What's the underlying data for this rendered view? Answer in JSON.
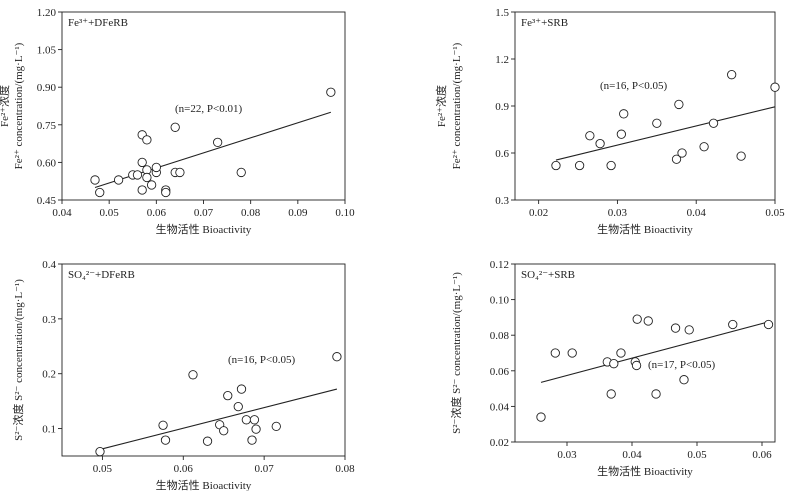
{
  "chart_data": [
    {
      "type": "scatter",
      "title": "Fe³⁺+DFeRB",
      "xlabel": "生物活性 Bioactivity",
      "ylabel_line1": "Fe²⁺浓度",
      "ylabel_line2": "Fe²⁺ concentration/(mg·L⁻¹)",
      "xlim": [
        0.04,
        0.1
      ],
      "ylim": [
        0.45,
        1.2
      ],
      "xticks": [
        0.04,
        0.05,
        0.06,
        0.07,
        0.08,
        0.09,
        0.1
      ],
      "xtick_labels": [
        "0.04",
        "0.05",
        "0.06",
        "0.07",
        "0.08",
        "0.09",
        "0.10"
      ],
      "yticks": [
        0.45,
        0.6,
        0.75,
        0.9,
        1.05,
        1.2
      ],
      "ytick_labels": [
        "0.45",
        "0.60",
        "0.75",
        "0.90",
        "1.05",
        "1.20"
      ],
      "annotation": "(n=22, P<0.01)",
      "points": [
        {
          "x": 0.047,
          "y": 0.53
        },
        {
          "x": 0.048,
          "y": 0.48
        },
        {
          "x": 0.052,
          "y": 0.53
        },
        {
          "x": 0.055,
          "y": 0.55
        },
        {
          "x": 0.056,
          "y": 0.55
        },
        {
          "x": 0.057,
          "y": 0.6
        },
        {
          "x": 0.057,
          "y": 0.49
        },
        {
          "x": 0.057,
          "y": 0.71
        },
        {
          "x": 0.058,
          "y": 0.69
        },
        {
          "x": 0.058,
          "y": 0.57
        },
        {
          "x": 0.058,
          "y": 0.54
        },
        {
          "x": 0.059,
          "y": 0.51
        },
        {
          "x": 0.06,
          "y": 0.56
        },
        {
          "x": 0.06,
          "y": 0.58
        },
        {
          "x": 0.062,
          "y": 0.49
        },
        {
          "x": 0.062,
          "y": 0.48
        },
        {
          "x": 0.064,
          "y": 0.56
        },
        {
          "x": 0.064,
          "y": 0.74
        },
        {
          "x": 0.065,
          "y": 0.56
        },
        {
          "x": 0.073,
          "y": 0.68
        },
        {
          "x": 0.078,
          "y": 0.56
        },
        {
          "x": 0.097,
          "y": 0.88
        }
      ],
      "fit": {
        "x": [
          0.047,
          0.097
        ],
        "y": [
          0.5,
          0.8
        ]
      }
    },
    {
      "type": "scatter",
      "title": "Fe³⁺+SRB",
      "xlabel": "生物活性 Bioactivity",
      "ylabel_line1": "Fe²⁺浓度",
      "ylabel_line2": "Fe²⁺ concentration/(mg·L⁻¹)",
      "xlim": [
        0.017,
        0.05
      ],
      "ylim": [
        0.3,
        1.5
      ],
      "xticks": [
        0.02,
        0.03,
        0.04,
        0.05
      ],
      "xtick_labels": [
        "0.02",
        "0.03",
        "0.04",
        "0.05"
      ],
      "yticks": [
        0.3,
        0.6,
        0.9,
        1.2,
        1.5
      ],
      "ytick_labels": [
        "0.3",
        "0.6",
        "0.9",
        "1.2",
        "1.5"
      ],
      "annotation": "(n=16, P<0.05)",
      "points": [
        {
          "x": 0.0222,
          "y": 0.52
        },
        {
          "x": 0.0252,
          "y": 0.52
        },
        {
          "x": 0.0265,
          "y": 0.71
        },
        {
          "x": 0.0278,
          "y": 0.66
        },
        {
          "x": 0.0292,
          "y": 0.52
        },
        {
          "x": 0.0305,
          "y": 0.72
        },
        {
          "x": 0.0308,
          "y": 0.85
        },
        {
          "x": 0.035,
          "y": 0.79
        },
        {
          "x": 0.0375,
          "y": 0.56
        },
        {
          "x": 0.0378,
          "y": 0.91
        },
        {
          "x": 0.0382,
          "y": 0.6
        },
        {
          "x": 0.041,
          "y": 0.64
        },
        {
          "x": 0.0422,
          "y": 0.79
        },
        {
          "x": 0.0445,
          "y": 1.1
        },
        {
          "x": 0.0457,
          "y": 0.58
        },
        {
          "x": 0.05,
          "y": 1.02
        }
      ],
      "fit": {
        "x": [
          0.0222,
          0.05
        ],
        "y": [
          0.555,
          0.895
        ]
      }
    },
    {
      "type": "scatter",
      "title": "SO₄²⁻+DFeRB",
      "xlabel": "生物活性 Bioactivity",
      "ylabel_line1": "",
      "ylabel_line2": "S²⁻浓度 S²⁻ concentration/(mg·L⁻¹)",
      "xlim": [
        0.045,
        0.08
      ],
      "ylim": [
        0.05,
        0.4
      ],
      "xticks": [
        0.05,
        0.06,
        0.07,
        0.08
      ],
      "xtick_labels": [
        "0.05",
        "0.06",
        "0.07",
        "0.08"
      ],
      "yticks": [
        0.1,
        0.2,
        0.3,
        0.4
      ],
      "ytick_labels": [
        "0.1",
        "0.2",
        "0.3",
        "0.4"
      ],
      "annotation": "(n=16, P<0.05)",
      "points": [
        {
          "x": 0.0497,
          "y": 0.058
        },
        {
          "x": 0.0575,
          "y": 0.106
        },
        {
          "x": 0.0578,
          "y": 0.079
        },
        {
          "x": 0.0612,
          "y": 0.198
        },
        {
          "x": 0.063,
          "y": 0.077
        },
        {
          "x": 0.0645,
          "y": 0.107
        },
        {
          "x": 0.065,
          "y": 0.096
        },
        {
          "x": 0.0655,
          "y": 0.16
        },
        {
          "x": 0.0668,
          "y": 0.14
        },
        {
          "x": 0.0672,
          "y": 0.172
        },
        {
          "x": 0.0678,
          "y": 0.116
        },
        {
          "x": 0.0685,
          "y": 0.079
        },
        {
          "x": 0.0688,
          "y": 0.116
        },
        {
          "x": 0.069,
          "y": 0.099
        },
        {
          "x": 0.0715,
          "y": 0.104
        },
        {
          "x": 0.079,
          "y": 0.231
        }
      ],
      "fit": {
        "x": [
          0.0497,
          0.079
        ],
        "y": [
          0.062,
          0.172
        ]
      }
    },
    {
      "type": "scatter",
      "title": "SO₄²⁻+SRB",
      "xlabel": "生物活性 Bioactivity",
      "ylabel_line1": "",
      "ylabel_line2": "S²⁻浓度 S²⁻ concentration/(mg·L⁻¹)",
      "xlim": [
        0.022,
        0.062
      ],
      "ylim": [
        0.02,
        0.12
      ],
      "xticks": [
        0.03,
        0.04,
        0.05,
        0.06
      ],
      "xtick_labels": [
        "0.03",
        "0.04",
        "0.05",
        "0.06"
      ],
      "yticks": [
        0.02,
        0.04,
        0.06,
        0.08,
        0.1,
        0.12
      ],
      "ytick_labels": [
        "0.02",
        "0.04",
        "0.06",
        "0.08",
        "0.10",
        "0.12"
      ],
      "annotation": "(n=17, P<0.05)",
      "points": [
        {
          "x": 0.026,
          "y": 0.034
        },
        {
          "x": 0.0282,
          "y": 0.07
        },
        {
          "x": 0.0308,
          "y": 0.07
        },
        {
          "x": 0.0362,
          "y": 0.065
        },
        {
          "x": 0.0368,
          "y": 0.047
        },
        {
          "x": 0.0372,
          "y": 0.064
        },
        {
          "x": 0.0383,
          "y": 0.07
        },
        {
          "x": 0.0405,
          "y": 0.065
        },
        {
          "x": 0.0407,
          "y": 0.063
        },
        {
          "x": 0.0408,
          "y": 0.089
        },
        {
          "x": 0.0425,
          "y": 0.088
        },
        {
          "x": 0.0437,
          "y": 0.047
        },
        {
          "x": 0.0467,
          "y": 0.084
        },
        {
          "x": 0.048,
          "y": 0.055
        },
        {
          "x": 0.0488,
          "y": 0.083
        },
        {
          "x": 0.0555,
          "y": 0.086
        },
        {
          "x": 0.061,
          "y": 0.086
        }
      ],
      "fit": {
        "x": [
          0.026,
          0.061
        ],
        "y": [
          0.0535,
          0.0875
        ]
      }
    }
  ]
}
